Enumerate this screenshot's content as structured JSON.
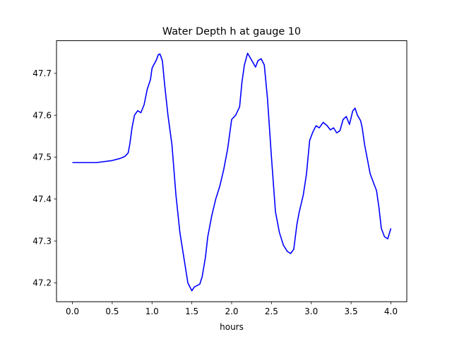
{
  "chart_data": {
    "type": "line",
    "title": "Water Depth h at gauge 10",
    "xlabel": "hours",
    "ylabel": "",
    "xlim": [
      -0.2,
      4.2
    ],
    "ylim": [
      47.155,
      47.778
    ],
    "xticks": [
      0.0,
      0.5,
      1.0,
      1.5,
      2.0,
      2.5,
      3.0,
      3.5,
      4.0
    ],
    "xtick_labels": [
      "0.0",
      "0.5",
      "1.0",
      "1.5",
      "2.0",
      "2.5",
      "3.0",
      "3.5",
      "4.0"
    ],
    "yticks": [
      47.2,
      47.3,
      47.4,
      47.5,
      47.6,
      47.7
    ],
    "ytick_labels": [
      "47.2",
      "47.3",
      "47.4",
      "47.5",
      "47.6",
      "47.7"
    ],
    "grid": false,
    "legend": "none",
    "series": [
      {
        "color": "#0000ff",
        "x": [
          0.0,
          0.3,
          0.5,
          0.6,
          0.66,
          0.7,
          0.72,
          0.75,
          0.78,
          0.82,
          0.86,
          0.9,
          0.94,
          0.98,
          1.0,
          1.02,
          1.05,
          1.08,
          1.1,
          1.13,
          1.16,
          1.2,
          1.25,
          1.3,
          1.35,
          1.4,
          1.45,
          1.5,
          1.53,
          1.56,
          1.6,
          1.63,
          1.67,
          1.7,
          1.75,
          1.8,
          1.85,
          1.9,
          1.95,
          2.0,
          2.05,
          2.1,
          2.13,
          2.16,
          2.2,
          2.24,
          2.27,
          2.3,
          2.33,
          2.37,
          2.41,
          2.45,
          2.5,
          2.55,
          2.6,
          2.65,
          2.7,
          2.74,
          2.78,
          2.82,
          2.85,
          2.9,
          2.94,
          2.98,
          3.02,
          3.06,
          3.1,
          3.15,
          3.2,
          3.24,
          3.28,
          3.32,
          3.36,
          3.4,
          3.44,
          3.48,
          3.52,
          3.55,
          3.58,
          3.62,
          3.64,
          3.67,
          3.7,
          3.74,
          3.78,
          3.82,
          3.85,
          3.88,
          3.92,
          3.96,
          4.0
        ],
        "y": [
          47.487,
          47.487,
          47.492,
          47.497,
          47.502,
          47.51,
          47.53,
          47.572,
          47.6,
          47.611,
          47.606,
          47.625,
          47.662,
          47.685,
          47.712,
          47.72,
          47.73,
          47.745,
          47.746,
          47.73,
          47.67,
          47.6,
          47.53,
          47.41,
          47.32,
          47.26,
          47.2,
          47.181,
          47.19,
          47.193,
          47.197,
          47.215,
          47.26,
          47.31,
          47.36,
          47.4,
          47.43,
          47.47,
          47.52,
          47.59,
          47.6,
          47.62,
          47.68,
          47.72,
          47.748,
          47.735,
          47.725,
          47.715,
          47.73,
          47.735,
          47.72,
          47.64,
          47.5,
          47.37,
          47.32,
          47.29,
          47.275,
          47.27,
          47.28,
          47.34,
          47.37,
          47.41,
          47.46,
          47.54,
          47.56,
          47.575,
          47.57,
          47.583,
          47.575,
          47.565,
          47.57,
          47.558,
          47.563,
          47.59,
          47.597,
          47.578,
          47.61,
          47.617,
          47.6,
          47.587,
          47.57,
          47.53,
          47.5,
          47.46,
          47.44,
          47.42,
          47.38,
          47.33,
          47.31,
          47.305,
          47.33
        ]
      }
    ]
  }
}
